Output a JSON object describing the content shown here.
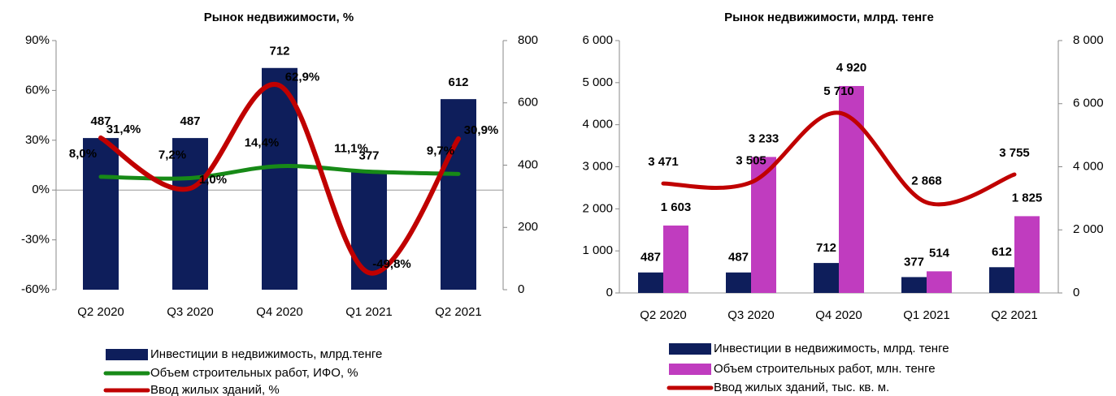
{
  "chart_data": [
    {
      "type": "combo",
      "title": "Рынок недвижимости, %",
      "categories": [
        "Q2 2020",
        "Q3 2020",
        "Q4 2020",
        "Q1 2021",
        "Q2 2021"
      ],
      "ylim": [
        -60,
        90
      ],
      "yticks": [
        {
          "value": -60,
          "label": "-60%"
        },
        {
          "value": -30,
          "label": "-30%"
        },
        {
          "value": 0,
          "label": "0%"
        },
        {
          "value": 30,
          "label": "30%"
        },
        {
          "value": 60,
          "label": "60%"
        },
        {
          "value": 90,
          "label": "90%"
        }
      ],
      "y2lim": [
        0,
        800
      ],
      "y2ticks": [
        0,
        200,
        400,
        600,
        800
      ],
      "series": [
        {
          "name": "Инвестиции в недвижимость, млрд.тенге",
          "type": "bar",
          "axis": "y2",
          "color": "#0e1e5b",
          "values": [
            487,
            487,
            712,
            377,
            612
          ]
        },
        {
          "name": "Объем строительных работ, ИФО, %",
          "type": "line",
          "color": "#178a17",
          "values": [
            8.0,
            7.2,
            14.4,
            11.1,
            9.7
          ],
          "value_labels": [
            "8,0%",
            "7,2%",
            "14,4%",
            "11,1%",
            "9,7%"
          ]
        },
        {
          "name": "Ввод жилых зданий, %",
          "type": "line",
          "color": "#c00000",
          "values": [
            31.4,
            1.0,
            62.9,
            -49.8,
            30.9
          ],
          "value_labels": [
            "31,4%",
            "1,0%",
            "62,9%",
            "-49,8%",
            "30,9%"
          ]
        }
      ]
    },
    {
      "type": "combo",
      "title": "Рынок недвижимости, млрд. тенге",
      "categories": [
        "Q2 2020",
        "Q3 2020",
        "Q4 2020",
        "Q1 2021",
        "Q2 2021"
      ],
      "ylim": [
        0,
        6000
      ],
      "yticks": [
        0,
        {
          "value": 1000,
          "label": "1 000"
        },
        {
          "value": 2000,
          "label": "2 000"
        },
        {
          "value": 3000,
          "label": "3 000"
        },
        {
          "value": 4000,
          "label": "4 000"
        },
        {
          "value": 5000,
          "label": "5 000"
        },
        {
          "value": 6000,
          "label": "6 000"
        }
      ],
      "y2lim": [
        0,
        8000
      ],
      "y2ticks": [
        0,
        {
          "value": 2000,
          "label": "2 000"
        },
        {
          "value": 4000,
          "label": "4 000"
        },
        {
          "value": 6000,
          "label": "6 000"
        },
        {
          "value": 8000,
          "label": "8 000"
        }
      ],
      "series": [
        {
          "name": "Инвестиции в недвижимость, млрд. тенге",
          "type": "bar",
          "color": "#0e1e5b",
          "values": [
            487,
            487,
            712,
            377,
            612
          ]
        },
        {
          "name": "Объем строительных работ, млн. тенге",
          "type": "bar",
          "color": "#c03cbf",
          "values": [
            1603,
            3233,
            4920,
            514,
            1825
          ],
          "value_labels": [
            "1 603",
            "3 233",
            "4 920",
            "514",
            "1 825"
          ]
        },
        {
          "name": "Ввод жилых зданий, тыс. кв. м.",
          "type": "line",
          "axis": "y2",
          "color": "#c00000",
          "values": [
            3471,
            3505,
            5710,
            2868,
            3755
          ],
          "value_labels": [
            "3 471",
            "3 505",
            "5 710",
            "2 868",
            "3 755"
          ]
        }
      ]
    }
  ]
}
